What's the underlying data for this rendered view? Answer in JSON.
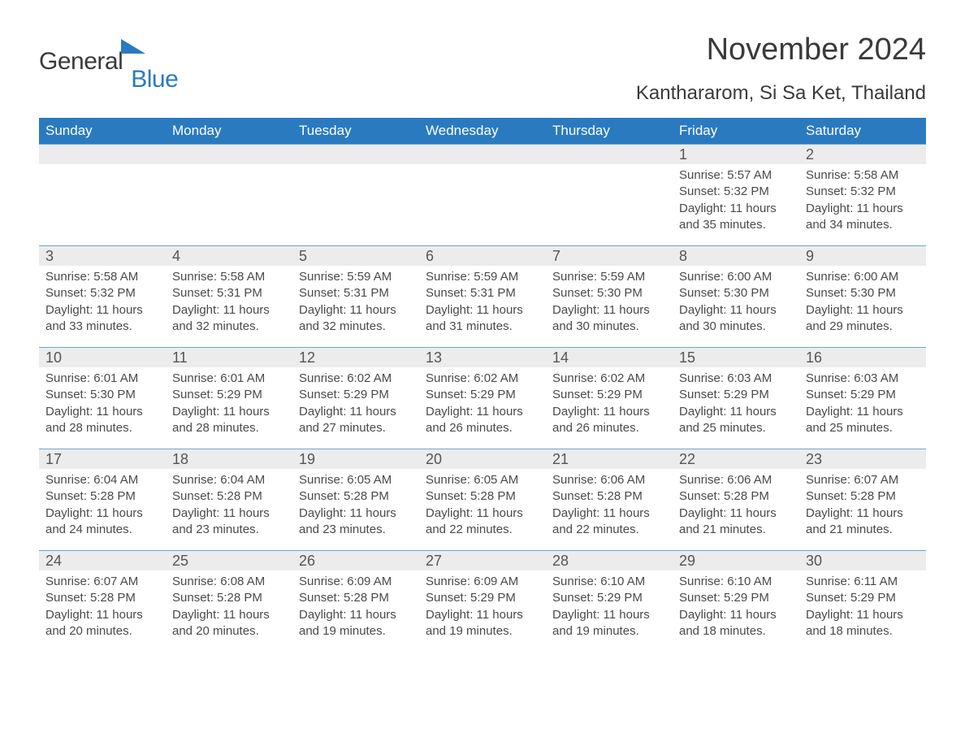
{
  "logo": {
    "text_main": "General",
    "text_accent": "Blue",
    "text_main_color": "#3a3a3a",
    "text_accent_color": "#2a7ac0",
    "icon_color": "#2a7ac0",
    "icon_name": "triangle-icon"
  },
  "header": {
    "month_title": "November 2024",
    "location": "Kanthararom, Si Sa Ket, Thailand"
  },
  "styling": {
    "header_bg": "#2a7ac0",
    "header_text": "#ffffff",
    "day_band_bg": "#ececec",
    "row_border_color": "#6aa6d8",
    "body_text_color": "#4a4a4a",
    "title_color": "#3a3a3a",
    "month_title_fontsize": 38,
    "location_fontsize": 24,
    "weekday_fontsize": 17,
    "daynum_fontsize": 18,
    "body_fontsize": 15
  },
  "calendar": {
    "type": "table",
    "weekdays": [
      "Sunday",
      "Monday",
      "Tuesday",
      "Wednesday",
      "Thursday",
      "Friday",
      "Saturday"
    ],
    "weeks": [
      {
        "days": [
          {
            "num": "",
            "sunrise": "",
            "sunset": "",
            "daylight1": "",
            "daylight2": ""
          },
          {
            "num": "",
            "sunrise": "",
            "sunset": "",
            "daylight1": "",
            "daylight2": ""
          },
          {
            "num": "",
            "sunrise": "",
            "sunset": "",
            "daylight1": "",
            "daylight2": ""
          },
          {
            "num": "",
            "sunrise": "",
            "sunset": "",
            "daylight1": "",
            "daylight2": ""
          },
          {
            "num": "",
            "sunrise": "",
            "sunset": "",
            "daylight1": "",
            "daylight2": ""
          },
          {
            "num": "1",
            "sunrise": "Sunrise: 5:57 AM",
            "sunset": "Sunset: 5:32 PM",
            "daylight1": "Daylight: 11 hours",
            "daylight2": "and 35 minutes."
          },
          {
            "num": "2",
            "sunrise": "Sunrise: 5:58 AM",
            "sunset": "Sunset: 5:32 PM",
            "daylight1": "Daylight: 11 hours",
            "daylight2": "and 34 minutes."
          }
        ]
      },
      {
        "days": [
          {
            "num": "3",
            "sunrise": "Sunrise: 5:58 AM",
            "sunset": "Sunset: 5:32 PM",
            "daylight1": "Daylight: 11 hours",
            "daylight2": "and 33 minutes."
          },
          {
            "num": "4",
            "sunrise": "Sunrise: 5:58 AM",
            "sunset": "Sunset: 5:31 PM",
            "daylight1": "Daylight: 11 hours",
            "daylight2": "and 32 minutes."
          },
          {
            "num": "5",
            "sunrise": "Sunrise: 5:59 AM",
            "sunset": "Sunset: 5:31 PM",
            "daylight1": "Daylight: 11 hours",
            "daylight2": "and 32 minutes."
          },
          {
            "num": "6",
            "sunrise": "Sunrise: 5:59 AM",
            "sunset": "Sunset: 5:31 PM",
            "daylight1": "Daylight: 11 hours",
            "daylight2": "and 31 minutes."
          },
          {
            "num": "7",
            "sunrise": "Sunrise: 5:59 AM",
            "sunset": "Sunset: 5:30 PM",
            "daylight1": "Daylight: 11 hours",
            "daylight2": "and 30 minutes."
          },
          {
            "num": "8",
            "sunrise": "Sunrise: 6:00 AM",
            "sunset": "Sunset: 5:30 PM",
            "daylight1": "Daylight: 11 hours",
            "daylight2": "and 30 minutes."
          },
          {
            "num": "9",
            "sunrise": "Sunrise: 6:00 AM",
            "sunset": "Sunset: 5:30 PM",
            "daylight1": "Daylight: 11 hours",
            "daylight2": "and 29 minutes."
          }
        ]
      },
      {
        "days": [
          {
            "num": "10",
            "sunrise": "Sunrise: 6:01 AM",
            "sunset": "Sunset: 5:30 PM",
            "daylight1": "Daylight: 11 hours",
            "daylight2": "and 28 minutes."
          },
          {
            "num": "11",
            "sunrise": "Sunrise: 6:01 AM",
            "sunset": "Sunset: 5:29 PM",
            "daylight1": "Daylight: 11 hours",
            "daylight2": "and 28 minutes."
          },
          {
            "num": "12",
            "sunrise": "Sunrise: 6:02 AM",
            "sunset": "Sunset: 5:29 PM",
            "daylight1": "Daylight: 11 hours",
            "daylight2": "and 27 minutes."
          },
          {
            "num": "13",
            "sunrise": "Sunrise: 6:02 AM",
            "sunset": "Sunset: 5:29 PM",
            "daylight1": "Daylight: 11 hours",
            "daylight2": "and 26 minutes."
          },
          {
            "num": "14",
            "sunrise": "Sunrise: 6:02 AM",
            "sunset": "Sunset: 5:29 PM",
            "daylight1": "Daylight: 11 hours",
            "daylight2": "and 26 minutes."
          },
          {
            "num": "15",
            "sunrise": "Sunrise: 6:03 AM",
            "sunset": "Sunset: 5:29 PM",
            "daylight1": "Daylight: 11 hours",
            "daylight2": "and 25 minutes."
          },
          {
            "num": "16",
            "sunrise": "Sunrise: 6:03 AM",
            "sunset": "Sunset: 5:29 PM",
            "daylight1": "Daylight: 11 hours",
            "daylight2": "and 25 minutes."
          }
        ]
      },
      {
        "days": [
          {
            "num": "17",
            "sunrise": "Sunrise: 6:04 AM",
            "sunset": "Sunset: 5:28 PM",
            "daylight1": "Daylight: 11 hours",
            "daylight2": "and 24 minutes."
          },
          {
            "num": "18",
            "sunrise": "Sunrise: 6:04 AM",
            "sunset": "Sunset: 5:28 PM",
            "daylight1": "Daylight: 11 hours",
            "daylight2": "and 23 minutes."
          },
          {
            "num": "19",
            "sunrise": "Sunrise: 6:05 AM",
            "sunset": "Sunset: 5:28 PM",
            "daylight1": "Daylight: 11 hours",
            "daylight2": "and 23 minutes."
          },
          {
            "num": "20",
            "sunrise": "Sunrise: 6:05 AM",
            "sunset": "Sunset: 5:28 PM",
            "daylight1": "Daylight: 11 hours",
            "daylight2": "and 22 minutes."
          },
          {
            "num": "21",
            "sunrise": "Sunrise: 6:06 AM",
            "sunset": "Sunset: 5:28 PM",
            "daylight1": "Daylight: 11 hours",
            "daylight2": "and 22 minutes."
          },
          {
            "num": "22",
            "sunrise": "Sunrise: 6:06 AM",
            "sunset": "Sunset: 5:28 PM",
            "daylight1": "Daylight: 11 hours",
            "daylight2": "and 21 minutes."
          },
          {
            "num": "23",
            "sunrise": "Sunrise: 6:07 AM",
            "sunset": "Sunset: 5:28 PM",
            "daylight1": "Daylight: 11 hours",
            "daylight2": "and 21 minutes."
          }
        ]
      },
      {
        "days": [
          {
            "num": "24",
            "sunrise": "Sunrise: 6:07 AM",
            "sunset": "Sunset: 5:28 PM",
            "daylight1": "Daylight: 11 hours",
            "daylight2": "and 20 minutes."
          },
          {
            "num": "25",
            "sunrise": "Sunrise: 6:08 AM",
            "sunset": "Sunset: 5:28 PM",
            "daylight1": "Daylight: 11 hours",
            "daylight2": "and 20 minutes."
          },
          {
            "num": "26",
            "sunrise": "Sunrise: 6:09 AM",
            "sunset": "Sunset: 5:28 PM",
            "daylight1": "Daylight: 11 hours",
            "daylight2": "and 19 minutes."
          },
          {
            "num": "27",
            "sunrise": "Sunrise: 6:09 AM",
            "sunset": "Sunset: 5:29 PM",
            "daylight1": "Daylight: 11 hours",
            "daylight2": "and 19 minutes."
          },
          {
            "num": "28",
            "sunrise": "Sunrise: 6:10 AM",
            "sunset": "Sunset: 5:29 PM",
            "daylight1": "Daylight: 11 hours",
            "daylight2": "and 19 minutes."
          },
          {
            "num": "29",
            "sunrise": "Sunrise: 6:10 AM",
            "sunset": "Sunset: 5:29 PM",
            "daylight1": "Daylight: 11 hours",
            "daylight2": "and 18 minutes."
          },
          {
            "num": "30",
            "sunrise": "Sunrise: 6:11 AM",
            "sunset": "Sunset: 5:29 PM",
            "daylight1": "Daylight: 11 hours",
            "daylight2": "and 18 minutes."
          }
        ]
      }
    ]
  }
}
